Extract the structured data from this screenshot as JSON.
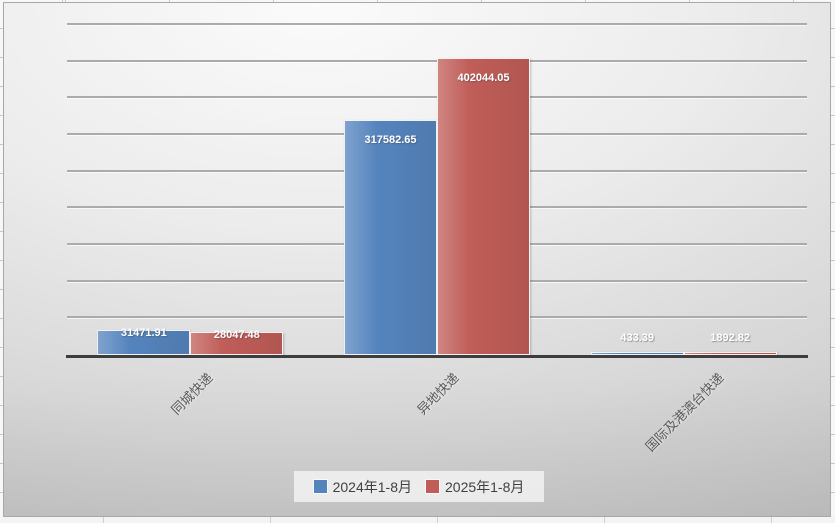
{
  "chart_data": {
    "type": "bar",
    "title": "",
    "categories": [
      "同城快递",
      "异地快递",
      "国际及港澳台快递"
    ],
    "series": [
      {
        "name": "2024年1-8月",
        "color": "#5584BD",
        "values": [
          31471.91,
          317582.65,
          433.39
        ]
      },
      {
        "name": "2025年1-8月",
        "color": "#C05D58",
        "values": [
          28047.48,
          402044.05,
          1892.82
        ]
      }
    ],
    "data_labels": {
      "visible": true,
      "position": "inside-end",
      "color": "#ffffff",
      "values_text": [
        [
          "31471.91",
          "317582.65",
          "433.39"
        ],
        [
          "28047.48",
          "402044.05",
          "1892.82"
        ]
      ]
    },
    "xlabel": "",
    "ylabel": "",
    "ylim": [
      0,
      450000
    ],
    "gridline_step": 50000,
    "grid": "horizontal",
    "y_axis_tick_labels_visible": false,
    "category_label_rotation_deg": 45,
    "legend_position": "bottom"
  },
  "legend": {
    "items": [
      {
        "label": "2024年1-8月",
        "color": "#5584BD"
      },
      {
        "label": "2025年1-8月",
        "color": "#C05D58"
      }
    ]
  }
}
